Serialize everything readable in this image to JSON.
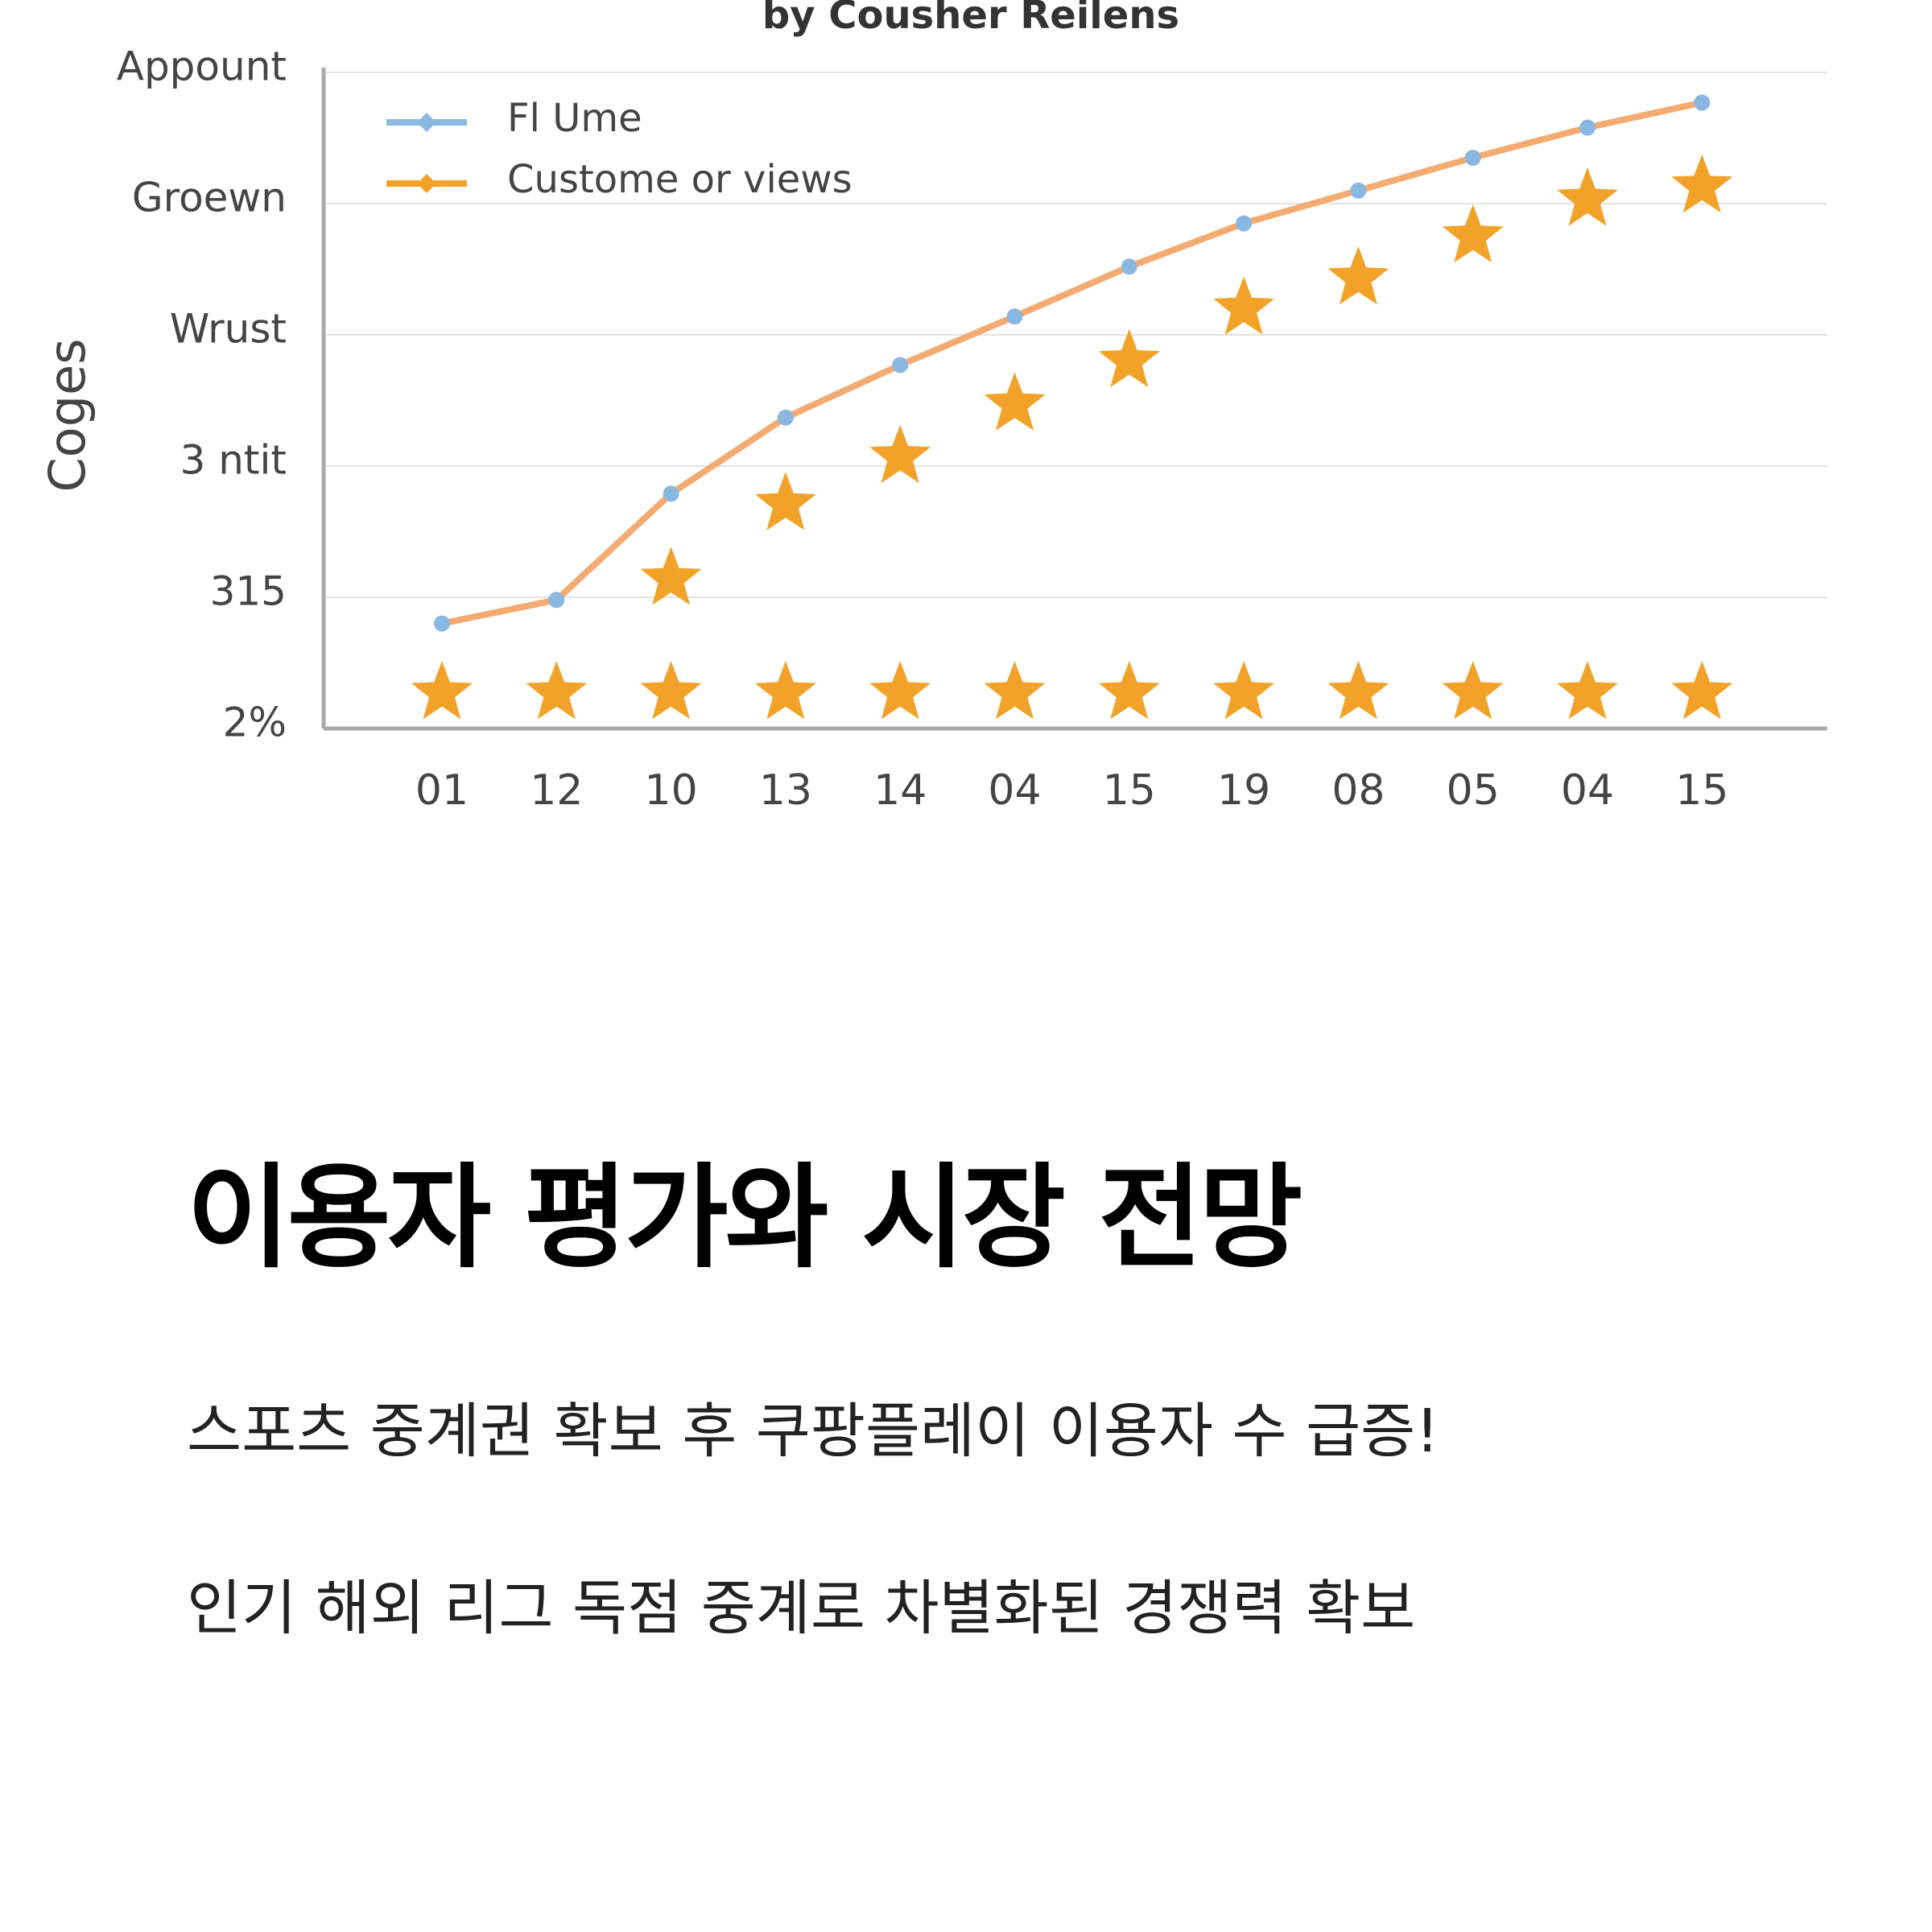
{
  "chart_data": {
    "type": "line",
    "title": "by Cousher Reilens",
    "y_label": "Coges",
    "categories": [
      "01",
      "12",
      "10",
      "13",
      "14",
      "04",
      "15",
      "19",
      "08",
      "05",
      "04",
      "15"
    ],
    "ylim": [
      0,
      5
    ],
    "yticks": [
      {
        "value": 0,
        "label": "2%"
      },
      {
        "value": 1,
        "label": "315"
      },
      {
        "value": 2,
        "label": "3 ntit"
      },
      {
        "value": 3,
        "label": "Wrust"
      },
      {
        "value": 4,
        "label": "Groewn"
      },
      {
        "value": 5,
        "label": "Appount"
      }
    ],
    "grid": true,
    "legend": "top-left",
    "series": [
      {
        "name": "Fl Ume",
        "color": "#f4ab72",
        "marker_color": "#8ab8e0",
        "marker": "dot",
        "values": [
          0.8,
          0.98,
          1.79,
          2.37,
          2.77,
          3.14,
          3.52,
          3.85,
          4.1,
          4.35,
          4.58,
          4.77
        ]
      },
      {
        "name": "Custome or views",
        "color": "#f2a229",
        "marker": "star",
        "values": [
          null,
          null,
          1.14,
          1.71,
          2.07,
          2.47,
          2.8,
          3.2,
          3.43,
          3.75,
          4.03,
          4.13
        ]
      },
      {
        "color": "#f2a229",
        "marker": "star",
        "values": [
          0.27,
          0.27,
          0.27,
          0.27,
          0.27,
          0.27,
          0.27,
          0.27,
          0.27,
          0.27,
          0.27,
          0.27
        ]
      }
    ]
  },
  "heading": "이용자 평가와 시장 전망",
  "paragraphs": [
    "스포츠 중계권 확보 후 쿠팡플레이 이용자 수 급증!",
    "인기 해외 리그 독점 중계로 차별화된 경쟁력 확보"
  ]
}
